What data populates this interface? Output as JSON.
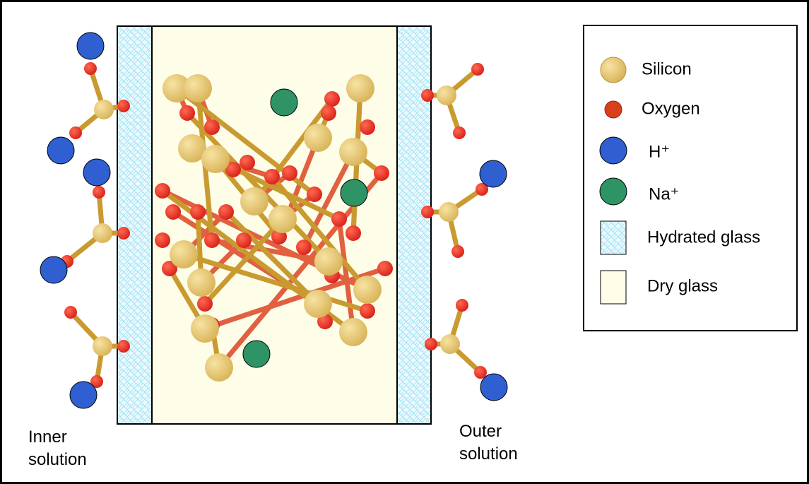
{
  "legend": {
    "items": [
      "Silicon",
      "Oxygen",
      "H⁺",
      "Na⁺",
      "Hydrated glass",
      "Dry glass"
    ]
  },
  "labels": {
    "inner": "Inner solution",
    "outer": "Outer solution"
  }
}
